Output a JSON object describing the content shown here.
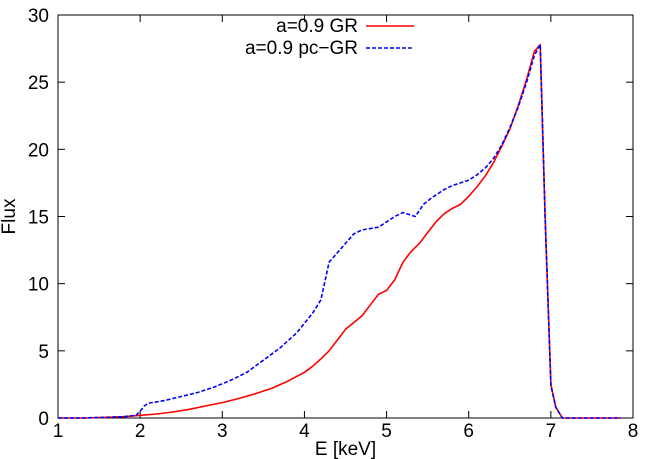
{
  "chart_data": {
    "type": "line",
    "xlabel": "E [keV]",
    "ylabel": "Flux",
    "xlim": [
      1,
      8
    ],
    "ylim": [
      0,
      30
    ],
    "xticks": [
      "1",
      "2",
      "3",
      "4",
      "5",
      "6",
      "7",
      "8"
    ],
    "yticks": [
      "0",
      "5",
      "10",
      "15",
      "20",
      "25",
      "30"
    ],
    "grid": false,
    "legend_position": "top-center",
    "series": [
      {
        "name": "a=0.9 GR",
        "color": "#ff0000",
        "dash": "solid",
        "x": [
          1.0,
          1.3,
          1.6,
          1.8,
          2.0,
          2.2,
          2.4,
          2.6,
          2.8,
          3.0,
          3.2,
          3.4,
          3.6,
          3.8,
          4.0,
          4.1,
          4.2,
          4.3,
          4.4,
          4.5,
          4.6,
          4.7,
          4.8,
          4.9,
          5.0,
          5.1,
          5.2,
          5.3,
          5.4,
          5.5,
          5.6,
          5.7,
          5.8,
          5.9,
          6.0,
          6.1,
          6.2,
          6.3,
          6.4,
          6.5,
          6.6,
          6.7,
          6.8,
          6.87,
          6.93,
          7.0,
          7.06,
          7.14,
          7.3,
          7.85
        ],
        "values": [
          0,
          0,
          0.05,
          0.1,
          0.2,
          0.3,
          0.45,
          0.65,
          0.9,
          1.15,
          1.45,
          1.8,
          2.2,
          2.75,
          3.4,
          3.85,
          4.4,
          5.0,
          5.8,
          6.6,
          7.1,
          7.6,
          8.4,
          9.2,
          9.5,
          10.3,
          11.6,
          12.4,
          13.0,
          13.8,
          14.6,
          15.2,
          15.6,
          15.9,
          16.5,
          17.2,
          18.0,
          19.0,
          20.2,
          21.5,
          23.2,
          25.1,
          27.3,
          27.8,
          15.0,
          2.5,
          0.8,
          0,
          0,
          0
        ]
      },
      {
        "name": "a=0.9 pc−GR",
        "color": "#0000ff",
        "dash": "dashed",
        "x": [
          1.0,
          1.3,
          1.6,
          1.8,
          1.95,
          2.0,
          2.05,
          2.1,
          2.3,
          2.5,
          2.7,
          2.9,
          3.1,
          3.3,
          3.5,
          3.7,
          3.9,
          4.1,
          4.2,
          4.25,
          4.3,
          4.4,
          4.5,
          4.6,
          4.7,
          4.8,
          4.9,
          5.0,
          5.1,
          5.2,
          5.3,
          5.35,
          5.45,
          5.55,
          5.7,
          5.8,
          5.9,
          6.0,
          6.1,
          6.2,
          6.3,
          6.4,
          6.5,
          6.6,
          6.7,
          6.8,
          6.87,
          6.93,
          7.0,
          7.06,
          7.14,
          7.3,
          7.85
        ],
        "values": [
          0,
          0,
          0.05,
          0.1,
          0.2,
          0.5,
          0.9,
          1.1,
          1.3,
          1.6,
          1.9,
          2.3,
          2.8,
          3.4,
          4.3,
          5.2,
          6.3,
          7.8,
          8.8,
          10.2,
          11.6,
          12.3,
          13.0,
          13.7,
          14.0,
          14.1,
          14.2,
          14.6,
          15.0,
          15.3,
          15.1,
          15.0,
          15.9,
          16.4,
          17.0,
          17.3,
          17.5,
          17.7,
          18.1,
          18.6,
          19.3,
          20.3,
          21.6,
          23.1,
          24.9,
          27.0,
          27.8,
          15.0,
          2.4,
          0.8,
          0,
          0,
          0
        ]
      }
    ]
  }
}
